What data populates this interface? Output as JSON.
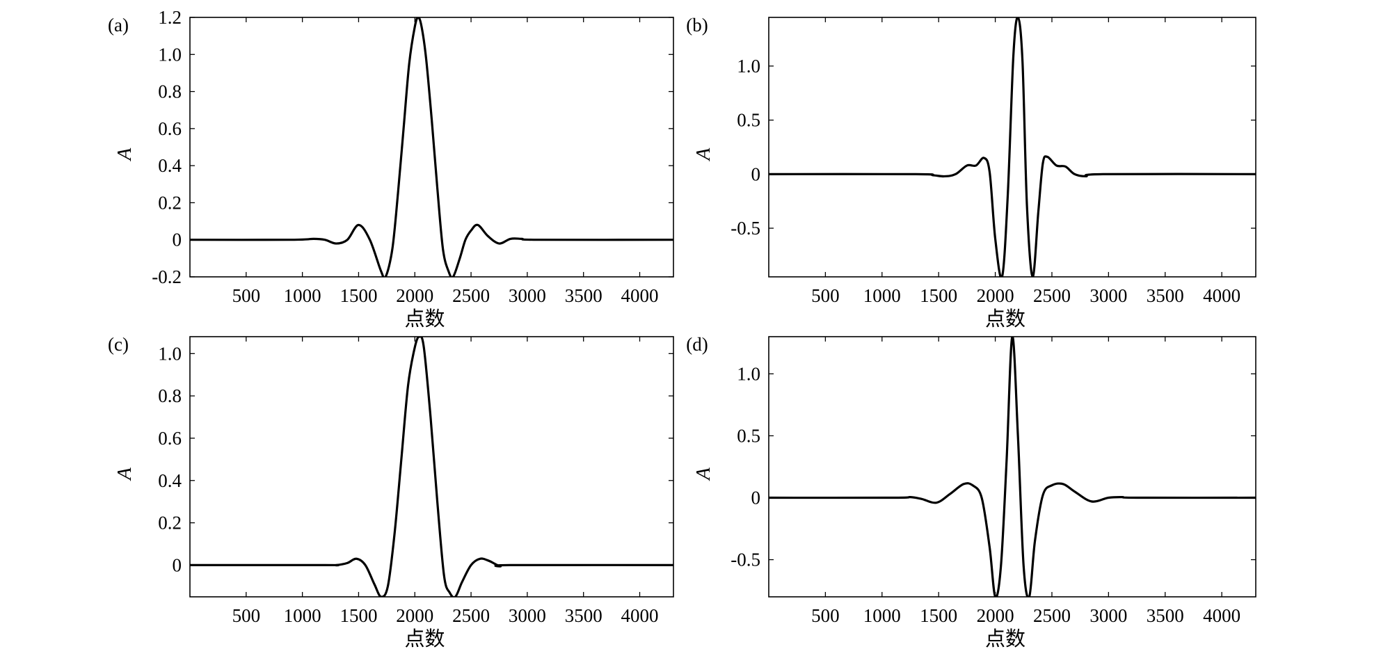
{
  "chart_data": [
    {
      "id": "a",
      "type": "line",
      "panel_label": "(a)",
      "xlabel": "点数",
      "ylabel": "A",
      "xlim": [
        0,
        4300
      ],
      "ylim": [
        -0.2,
        1.2
      ],
      "xticks": [
        500,
        1000,
        1500,
        2000,
        2500,
        3000,
        3500,
        4000
      ],
      "xtick_labels": [
        "500",
        "1000",
        "1500",
        "2000",
        "2500",
        "3000",
        "3500",
        "4000"
      ],
      "yticks": [
        -0.2,
        0,
        0.2,
        0.4,
        0.6,
        0.8,
        1.0,
        1.2
      ],
      "ytick_labels": [
        "-0.2",
        "0",
        "0.2",
        "0.4",
        "0.6",
        "0.8",
        "1.0",
        "1.2"
      ],
      "grid": false,
      "series": [
        {
          "x": [
            0,
            900,
            1100,
            1200,
            1300,
            1400,
            1500,
            1600,
            1700,
            1740,
            1800,
            1850,
            1900,
            1950,
            2000,
            2030,
            2060,
            2100,
            2150,
            2200,
            2250,
            2300,
            2340,
            2400,
            2450,
            2500,
            2560,
            2650,
            2750,
            2850,
            2950,
            3100,
            4300
          ],
          "y": [
            0,
            0,
            0.005,
            0.0,
            -0.02,
            0.0,
            0.08,
            0.0,
            -0.17,
            -0.2,
            -0.05,
            0.25,
            0.6,
            0.95,
            1.15,
            1.2,
            1.15,
            0.98,
            0.65,
            0.28,
            -0.05,
            -0.17,
            -0.2,
            -0.1,
            0.0,
            0.05,
            0.08,
            0.02,
            -0.02,
            0.005,
            0.005,
            0,
            0
          ]
        }
      ]
    },
    {
      "id": "b",
      "type": "line",
      "panel_label": "(b)",
      "xlabel": "点数",
      "ylabel": "A",
      "xlim": [
        0,
        4300
      ],
      "ylim": [
        -0.95,
        1.45
      ],
      "xticks": [
        500,
        1000,
        1500,
        2000,
        2500,
        3000,
        3500,
        4000
      ],
      "xtick_labels": [
        "500",
        "1000",
        "1500",
        "2000",
        "2500",
        "3000",
        "3500",
        "4000"
      ],
      "yticks": [
        -0.5,
        0,
        0.5,
        1.0
      ],
      "ytick_labels": [
        "-0.5",
        "0",
        "0.5",
        "1.0"
      ],
      "grid": false,
      "series": [
        {
          "x": [
            0,
            1300,
            1450,
            1550,
            1650,
            1750,
            1830,
            1900,
            1950,
            2000,
            2060,
            2110,
            2160,
            2200,
            2240,
            2280,
            2330,
            2380,
            2420,
            2460,
            2540,
            2620,
            2700,
            2800,
            2950,
            4300
          ],
          "y": [
            0,
            0,
            -0.01,
            -0.02,
            0.0,
            0.08,
            0.08,
            0.15,
            0.02,
            -0.6,
            -0.95,
            -0.2,
            1.1,
            1.45,
            1.05,
            -0.3,
            -0.95,
            -0.35,
            0.1,
            0.16,
            0.08,
            0.07,
            0.0,
            -0.02,
            0,
            0
          ]
        }
      ]
    },
    {
      "id": "c",
      "type": "line",
      "panel_label": "(c)",
      "xlabel": "点数",
      "ylabel": "A",
      "xlim": [
        0,
        4300
      ],
      "ylim": [
        -0.15,
        1.08
      ],
      "xticks": [
        500,
        1000,
        1500,
        2000,
        2500,
        3000,
        3500,
        4000
      ],
      "xtick_labels": [
        "500",
        "1000",
        "1500",
        "2000",
        "2500",
        "3000",
        "3500",
        "4000"
      ],
      "yticks": [
        0,
        0.2,
        0.4,
        0.6,
        0.8,
        1.0
      ],
      "ytick_labels": [
        "0",
        "0.2",
        "0.4",
        "0.6",
        "0.8",
        "1.0"
      ],
      "grid": false,
      "series": [
        {
          "x": [
            0,
            1200,
            1300,
            1400,
            1480,
            1560,
            1640,
            1700,
            1760,
            1820,
            1880,
            1940,
            2000,
            2040,
            2080,
            2140,
            2200,
            2260,
            2310,
            2360,
            2420,
            2500,
            2580,
            2660,
            2760,
            2850,
            4300
          ],
          "y": [
            0,
            0,
            0.0,
            0.01,
            0.03,
            0.0,
            -0.09,
            -0.15,
            -0.1,
            0.15,
            0.5,
            0.85,
            1.03,
            1.08,
            1.03,
            0.7,
            0.3,
            -0.05,
            -0.13,
            -0.15,
            -0.08,
            0.0,
            0.03,
            0.02,
            -0.005,
            0,
            0
          ]
        }
      ]
    },
    {
      "id": "d",
      "type": "line",
      "panel_label": "(d)",
      "xlabel": "点数",
      "ylabel": "A",
      "xlim": [
        0,
        4300
      ],
      "ylim": [
        -0.8,
        1.3
      ],
      "xticks": [
        500,
        1000,
        1500,
        2000,
        2500,
        3000,
        3500,
        4000
      ],
      "xtick_labels": [
        "500",
        "1000",
        "1500",
        "2000",
        "2500",
        "3000",
        "3500",
        "4000"
      ],
      "yticks": [
        -0.5,
        0,
        0.5,
        1.0
      ],
      "ytick_labels": [
        "-0.5",
        "0",
        "0.5",
        "1.0"
      ],
      "grid": false,
      "series": [
        {
          "x": [
            0,
            1100,
            1250,
            1350,
            1480,
            1600,
            1720,
            1800,
            1880,
            1950,
            2000,
            2050,
            2100,
            2150,
            2200,
            2250,
            2300,
            2350,
            2420,
            2500,
            2600,
            2700,
            2850,
            3000,
            3120,
            3250,
            4300
          ],
          "y": [
            0,
            0,
            0.005,
            -0.01,
            -0.04,
            0.03,
            0.11,
            0.1,
            0.0,
            -0.4,
            -0.8,
            -0.55,
            0.3,
            1.3,
            0.5,
            -0.55,
            -0.8,
            -0.35,
            0.02,
            0.1,
            0.11,
            0.05,
            -0.03,
            0.0,
            0.005,
            0,
            0
          ]
        }
      ]
    }
  ]
}
